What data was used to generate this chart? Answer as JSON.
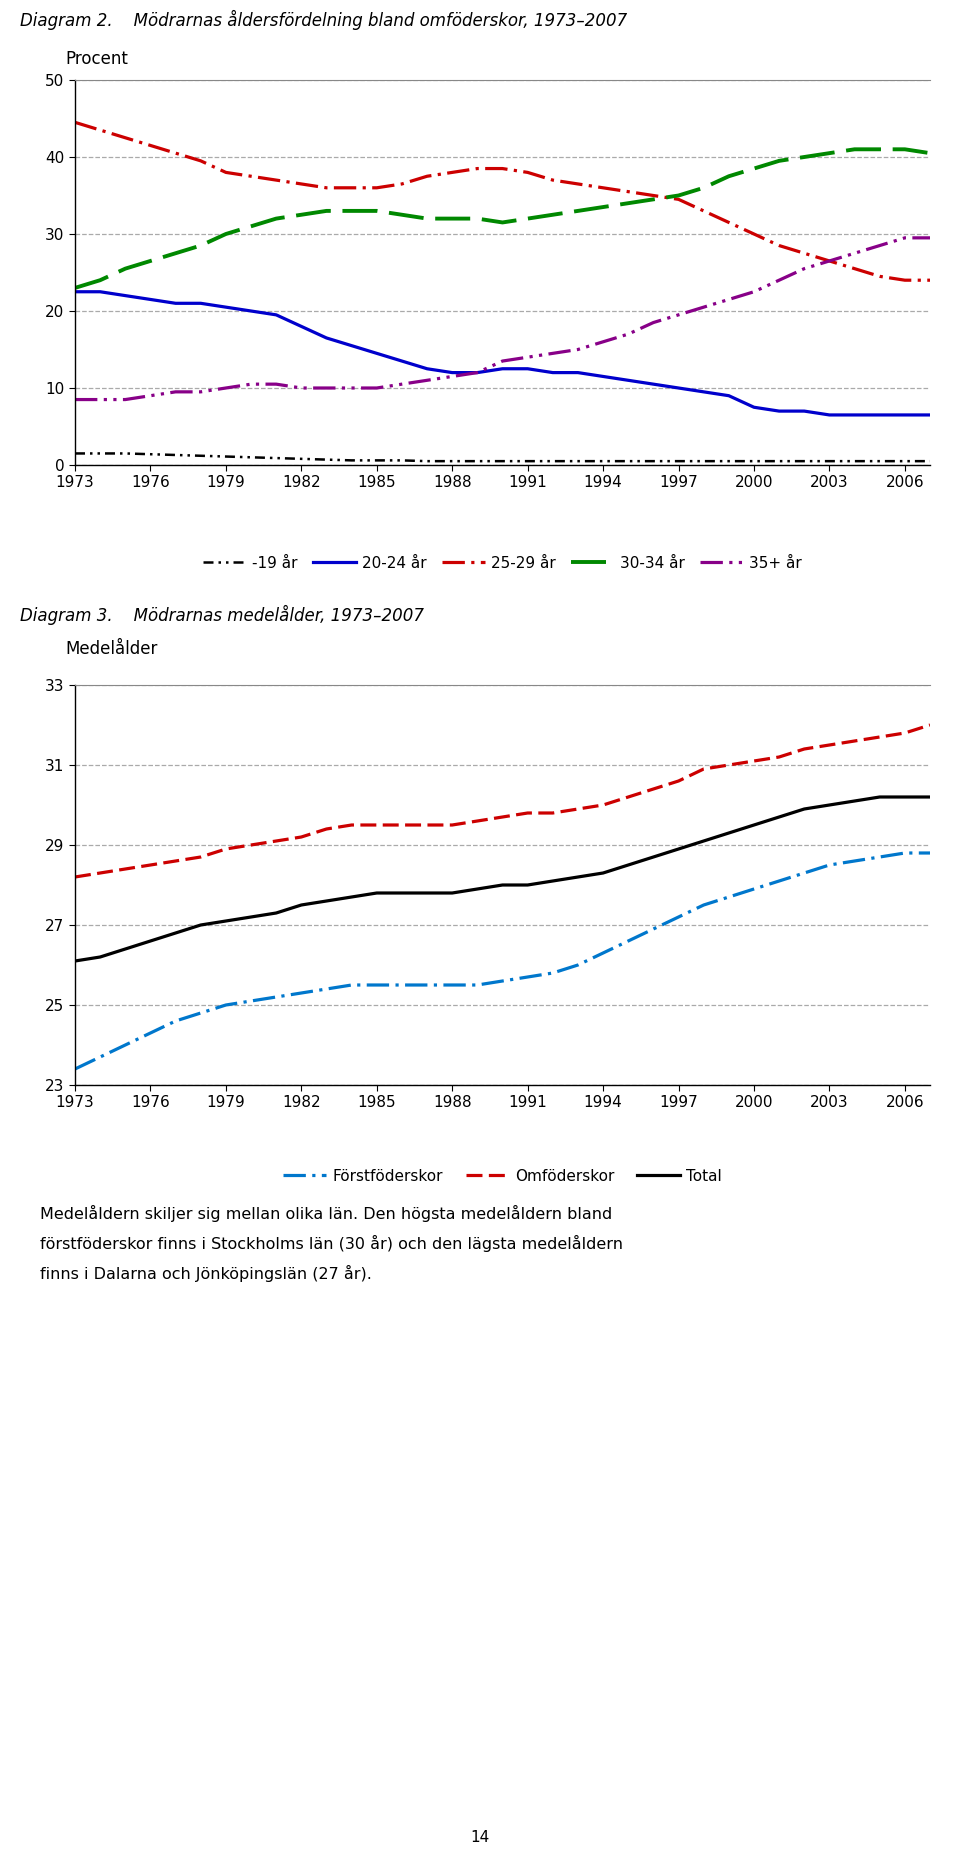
{
  "diag2_title": "Diagram 2.    Mödrarnas åldersfördelning bland omföderskor, 1973–2007",
  "diag2_ylabel": "Procent",
  "diag2_ylim": [
    0,
    50
  ],
  "diag2_yticks": [
    0,
    10,
    20,
    30,
    40,
    50
  ],
  "diag3_title": "Diagram 3.    Mödrarnas medelålder, 1973–2007",
  "diag3_ylabel": "Medelålder",
  "diag3_ylim": [
    23,
    33
  ],
  "diag3_yticks": [
    23,
    25,
    27,
    29,
    31,
    33
  ],
  "xticks": [
    1973,
    1976,
    1979,
    1982,
    1985,
    1988,
    1991,
    1994,
    1997,
    2000,
    2003,
    2006
  ],
  "years": [
    1973,
    1974,
    1975,
    1976,
    1977,
    1978,
    1979,
    1980,
    1981,
    1982,
    1983,
    1984,
    1985,
    1986,
    1987,
    1988,
    1989,
    1990,
    1991,
    1992,
    1993,
    1994,
    1995,
    1996,
    1997,
    1998,
    1999,
    2000,
    2001,
    2002,
    2003,
    2004,
    2005,
    2006,
    2007
  ],
  "diag2_under19": [
    1.5,
    1.5,
    1.5,
    1.4,
    1.3,
    1.2,
    1.1,
    1.0,
    0.9,
    0.8,
    0.7,
    0.6,
    0.6,
    0.6,
    0.5,
    0.5,
    0.5,
    0.5,
    0.5,
    0.5,
    0.5,
    0.5,
    0.5,
    0.5,
    0.5,
    0.5,
    0.5,
    0.5,
    0.5,
    0.5,
    0.5,
    0.5,
    0.5,
    0.5,
    0.5
  ],
  "diag2_20_24": [
    22.5,
    22.5,
    22.0,
    21.5,
    21.0,
    21.0,
    20.5,
    20.0,
    19.5,
    18.0,
    16.5,
    15.5,
    14.5,
    13.5,
    12.5,
    12.0,
    12.0,
    12.5,
    12.5,
    12.0,
    12.0,
    11.5,
    11.0,
    10.5,
    10.0,
    9.5,
    9.0,
    7.5,
    7.0,
    7.0,
    6.5,
    6.5,
    6.5,
    6.5,
    6.5
  ],
  "diag2_25_29": [
    44.5,
    43.5,
    42.5,
    41.5,
    40.5,
    39.5,
    38.0,
    37.5,
    37.0,
    36.5,
    36.0,
    36.0,
    36.0,
    36.5,
    37.5,
    38.0,
    38.5,
    38.5,
    38.0,
    37.0,
    36.5,
    36.0,
    35.5,
    35.0,
    34.5,
    33.0,
    31.5,
    30.0,
    28.5,
    27.5,
    26.5,
    25.5,
    24.5,
    24.0,
    24.0
  ],
  "diag2_30_34": [
    23.0,
    24.0,
    25.5,
    26.5,
    27.5,
    28.5,
    30.0,
    31.0,
    32.0,
    32.5,
    33.0,
    33.0,
    33.0,
    32.5,
    32.0,
    32.0,
    32.0,
    31.5,
    32.0,
    32.5,
    33.0,
    33.5,
    34.0,
    34.5,
    35.0,
    36.0,
    37.5,
    38.5,
    39.5,
    40.0,
    40.5,
    41.0,
    41.0,
    41.0,
    40.5
  ],
  "diag2_35plus": [
    8.5,
    8.5,
    8.5,
    9.0,
    9.5,
    9.5,
    10.0,
    10.5,
    10.5,
    10.0,
    10.0,
    10.0,
    10.0,
    10.5,
    11.0,
    11.5,
    12.0,
    13.5,
    14.0,
    14.5,
    15.0,
    16.0,
    17.0,
    18.5,
    19.5,
    20.5,
    21.5,
    22.5,
    24.0,
    25.5,
    26.5,
    27.5,
    28.5,
    29.5,
    29.5
  ],
  "diag3_years": [
    1973,
    1974,
    1975,
    1976,
    1977,
    1978,
    1979,
    1980,
    1981,
    1982,
    1983,
    1984,
    1985,
    1986,
    1987,
    1988,
    1989,
    1990,
    1991,
    1992,
    1993,
    1994,
    1995,
    1996,
    1997,
    1998,
    1999,
    2000,
    2001,
    2002,
    2003,
    2004,
    2005,
    2006,
    2007
  ],
  "diag3_forst": [
    23.4,
    23.7,
    24.0,
    24.3,
    24.6,
    24.8,
    25.0,
    25.1,
    25.2,
    25.3,
    25.4,
    25.5,
    25.5,
    25.5,
    25.5,
    25.5,
    25.5,
    25.6,
    25.7,
    25.8,
    26.0,
    26.3,
    26.6,
    26.9,
    27.2,
    27.5,
    27.7,
    27.9,
    28.1,
    28.3,
    28.5,
    28.6,
    28.7,
    28.8,
    28.8
  ],
  "diag3_omf": [
    28.2,
    28.3,
    28.4,
    28.5,
    28.6,
    28.7,
    28.9,
    29.0,
    29.1,
    29.2,
    29.4,
    29.5,
    29.5,
    29.5,
    29.5,
    29.5,
    29.6,
    29.7,
    29.8,
    29.8,
    29.9,
    30.0,
    30.2,
    30.4,
    30.6,
    30.9,
    31.0,
    31.1,
    31.2,
    31.4,
    31.5,
    31.6,
    31.7,
    31.8,
    32.0
  ],
  "diag3_total": [
    26.1,
    26.2,
    26.4,
    26.6,
    26.8,
    27.0,
    27.1,
    27.2,
    27.3,
    27.5,
    27.6,
    27.7,
    27.8,
    27.8,
    27.8,
    27.8,
    27.9,
    28.0,
    28.0,
    28.1,
    28.2,
    28.3,
    28.5,
    28.7,
    28.9,
    29.1,
    29.3,
    29.5,
    29.7,
    29.9,
    30.0,
    30.1,
    30.2,
    30.2,
    30.2
  ],
  "body_text_line1": "Medelåldern skiljer sig mellan olika län. Den högsta medelåldern bland",
  "body_text_line2": "förstföderskor finns i Stockholms län (30 år) och den lägsta medelåldern",
  "body_text_line3": "finns i Dalarna och Jönköpingslän (27 år).",
  "page_number": "14",
  "background_color": "#ffffff",
  "color_under19": "#000000",
  "color_20_24": "#0000cc",
  "color_25_29": "#cc0000",
  "color_30_34": "#008800",
  "color_35plus": "#880088",
  "color_forst": "#0077cc",
  "color_omf": "#cc0000",
  "color_total": "#000000",
  "grid_color": "#aaaaaa",
  "spine_color": "#888888"
}
